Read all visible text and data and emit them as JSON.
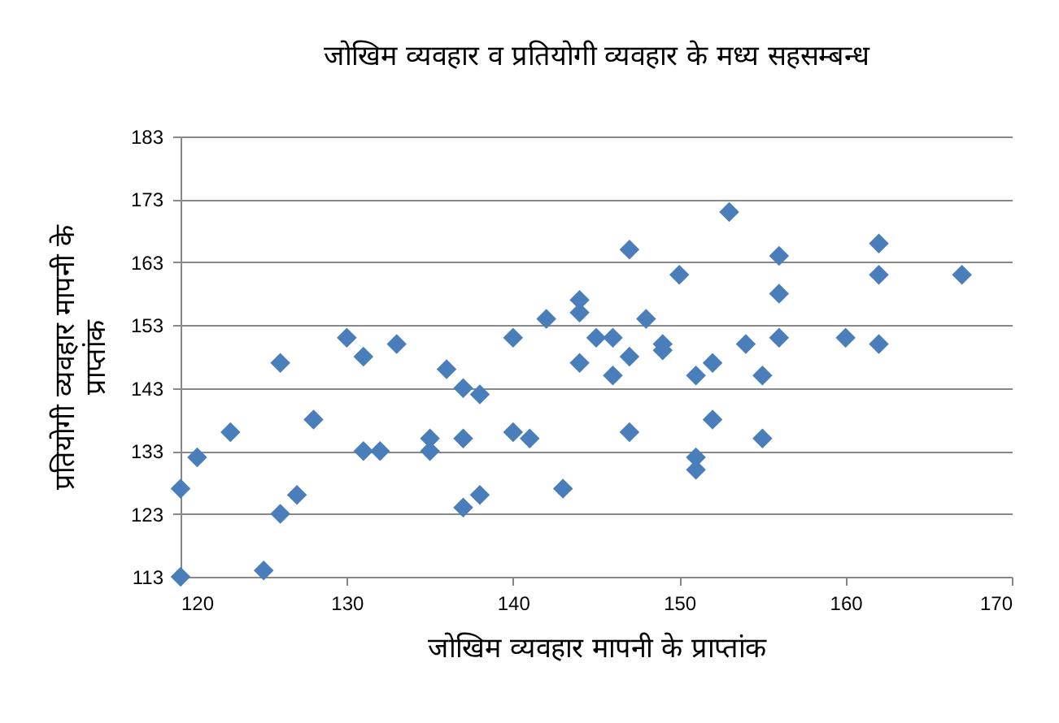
{
  "chart_data": {
    "type": "scatter",
    "title": "जोखिम व्यवहार व प्रतियोगी व्यवहार के मध्य सहसम्बन्ध",
    "xlabel": "जोखिम व्यवहार मापनी के प्राप्तांक",
    "ylabel": "प्रतियोगी व्यवहार मापनी के प्राप्तांक",
    "x": [
      120,
      120,
      121,
      123,
      125,
      126,
      126,
      127,
      128,
      130,
      131,
      131,
      132,
      133,
      135,
      135,
      136,
      137,
      137,
      137,
      138,
      138,
      140,
      140,
      141,
      142,
      143,
      144,
      144,
      144,
      145,
      146,
      146,
      147,
      147,
      147,
      148,
      149,
      149,
      150,
      151,
      151,
      151,
      152,
      152,
      153,
      154,
      155,
      155,
      156,
      156,
      156,
      160,
      162,
      162,
      162,
      167
    ],
    "series": [
      {
        "color": "#4a7ebb",
        "values": [
          127,
          113,
          132,
          136,
          114,
          147,
          123,
          126,
          138,
          151,
          148,
          133,
          133,
          150,
          135,
          133,
          146,
          143,
          135,
          124,
          142,
          126,
          151,
          136,
          135,
          154,
          127,
          157,
          155,
          147,
          151,
          151,
          145,
          165,
          148,
          136,
          154,
          150,
          149,
          161,
          145,
          132,
          130,
          147,
          138,
          171,
          150,
          145,
          135,
          164,
          158,
          151,
          151,
          166,
          161,
          150,
          161
        ]
      }
    ],
    "xlim": [
      120,
      170
    ],
    "xticks": [
      120,
      130,
      140,
      150,
      160,
      170
    ],
    "ylim": [
      113,
      183
    ],
    "yticks": [
      113,
      123,
      133,
      143,
      153,
      163,
      173,
      183
    ],
    "grid": "y",
    "marker": "diamond",
    "legend": false
  }
}
